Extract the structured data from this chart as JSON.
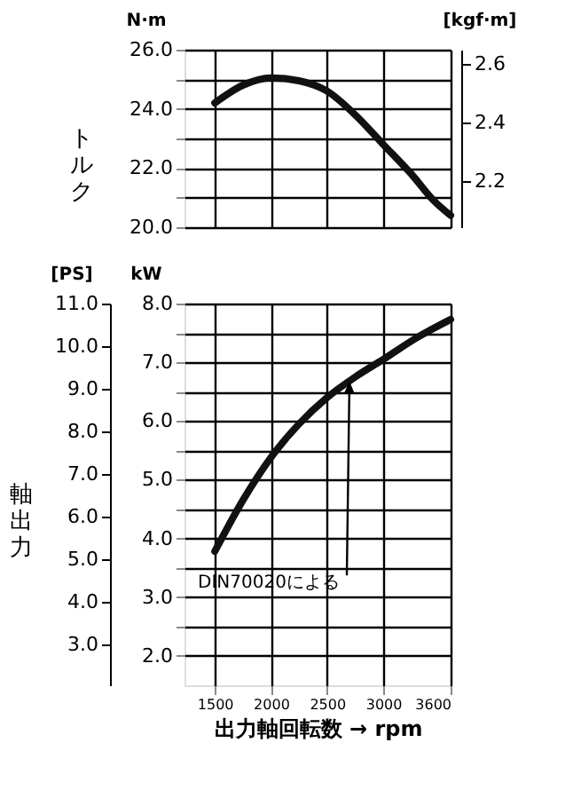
{
  "chart_data": [
    {
      "type": "line",
      "ylabel": "N·m",
      "y2label": "[kgf·m]",
      "annotations": [
        "トルク"
      ],
      "tick_labels": "y",
      "grid": true,
      "xlim": [
        1230,
        3600
      ],
      "xticks": [
        1500,
        2000,
        2500,
        3000,
        3600
      ],
      "ylim": [
        20,
        26
      ],
      "yticks": [
        {
          "value": 20,
          "label": "20.0"
        },
        {
          "value": 21,
          "label": null
        },
        {
          "value": 22,
          "label": "22.0"
        },
        {
          "value": 23,
          "label": null
        },
        {
          "value": 24,
          "label": "24.0"
        },
        {
          "value": 25,
          "label": null
        },
        {
          "value": 26,
          "label": "26.0"
        }
      ],
      "y2lim": [
        2.04,
        2.65
      ],
      "y2ticks": [
        2.2,
        2.4,
        2.6
      ],
      "series": [
        {
          "color": "#111111",
          "x": [
            1500,
            1750,
            2000,
            2250,
            2500,
            2750,
            3000,
            3250,
            3450,
            3600
          ],
          "values": [
            24.2,
            24.8,
            25.05,
            24.95,
            24.6,
            23.8,
            22.8,
            21.8,
            20.9,
            20.4
          ]
        }
      ]
    },
    {
      "type": "line",
      "xlabel": "出力軸回転数 → rpm",
      "ylabel": "kW",
      "y2label": "[PS]",
      "grid": true,
      "annotations": [
        "DIN70020による",
        "軸出力"
      ],
      "xlim": [
        1230,
        3600
      ],
      "xticks": [
        1500,
        2000,
        2500,
        3000,
        3600
      ],
      "ylim": [
        1.5,
        8
      ],
      "yticks": [
        {
          "value": 2,
          "label": "2.0"
        },
        {
          "value": 2.5,
          "label": null
        },
        {
          "value": 3,
          "label": "3.0"
        },
        {
          "value": 3.5,
          "label": null
        },
        {
          "value": 4,
          "label": "4.0"
        },
        {
          "value": 4.5,
          "label": null
        },
        {
          "value": 5,
          "label": "5.0"
        },
        {
          "value": 5.5,
          "label": null
        },
        {
          "value": 6,
          "label": "6.0"
        },
        {
          "value": 6.5,
          "label": null
        },
        {
          "value": 7,
          "label": "7.0"
        },
        {
          "value": 7.5,
          "label": null
        },
        {
          "value": 8,
          "label": "8.0"
        }
      ],
      "y2lim": [
        2.04,
        11.0
      ],
      "y2ticks": [
        {
          "value": 3,
          "label": "3.0"
        },
        {
          "value": 4,
          "label": "4.0"
        },
        {
          "value": 5,
          "label": "5.0"
        },
        {
          "value": 6,
          "label": "6.0"
        },
        {
          "value": 7,
          "label": "7.0"
        },
        {
          "value": 8,
          "label": "8.0"
        },
        {
          "value": 9,
          "label": "9.0"
        },
        {
          "value": 10,
          "label": "10.0"
        },
        {
          "value": 11,
          "label": "11.0"
        }
      ],
      "series": [
        {
          "color": "#111111",
          "x": [
            1500,
            1750,
            2000,
            2250,
            2500,
            2750,
            3000,
            3300,
            3600
          ],
          "values": [
            3.78,
            4.65,
            5.38,
            5.95,
            6.4,
            6.75,
            7.05,
            7.42,
            7.73
          ]
        }
      ]
    }
  ]
}
